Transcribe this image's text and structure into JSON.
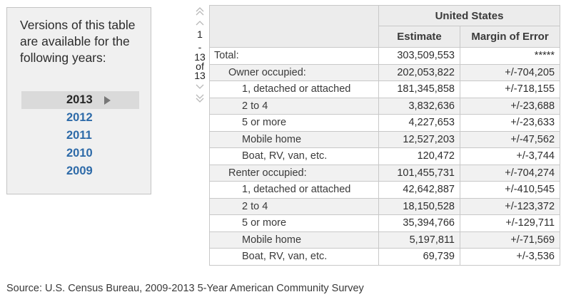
{
  "versions_panel": {
    "title": "Versions of this table are available for the following years:",
    "years": [
      {
        "label": "2013",
        "selected": true
      },
      {
        "label": "2012",
        "selected": false
      },
      {
        "label": "2011",
        "selected": false
      },
      {
        "label": "2010",
        "selected": false
      },
      {
        "label": "2009",
        "selected": false
      }
    ]
  },
  "navigator": {
    "start": "1",
    "dash": "-",
    "end": "13",
    "of": "of",
    "total": "13"
  },
  "table": {
    "geo_header": "United States",
    "col_estimate": "Estimate",
    "col_moe": "Margin of Error",
    "rows": [
      {
        "label": "Total:",
        "estimate": "303,509,553",
        "moe": "*****"
      },
      {
        "label": "Owner occupied:",
        "estimate": "202,053,822",
        "moe": "+/-704,205"
      },
      {
        "label": "1, detached or attached",
        "estimate": "181,345,858",
        "moe": "+/-718,155"
      },
      {
        "label": "2 to 4",
        "estimate": "3,832,636",
        "moe": "+/-23,688"
      },
      {
        "label": "5 or more",
        "estimate": "4,227,653",
        "moe": "+/-23,633"
      },
      {
        "label": "Mobile home",
        "estimate": "12,527,203",
        "moe": "+/-47,562"
      },
      {
        "label": "Boat, RV, van, etc.",
        "estimate": "120,472",
        "moe": "+/-3,744"
      },
      {
        "label": "Renter occupied:",
        "estimate": "101,455,731",
        "moe": "+/-704,274"
      },
      {
        "label": "1, detached or attached",
        "estimate": "42,642,887",
        "moe": "+/-410,545"
      },
      {
        "label": "2 to 4",
        "estimate": "18,150,528",
        "moe": "+/-123,372"
      },
      {
        "label": "5 or more",
        "estimate": "35,394,766",
        "moe": "+/-129,711"
      },
      {
        "label": "Mobile home",
        "estimate": "5,197,811",
        "moe": "+/-71,569"
      },
      {
        "label": "Boat, RV, van, etc.",
        "estimate": "69,739",
        "moe": "+/-3,536"
      }
    ]
  },
  "source_note": "Source: U.S. Census Bureau, 2009-2013 5-Year American Community Survey"
}
